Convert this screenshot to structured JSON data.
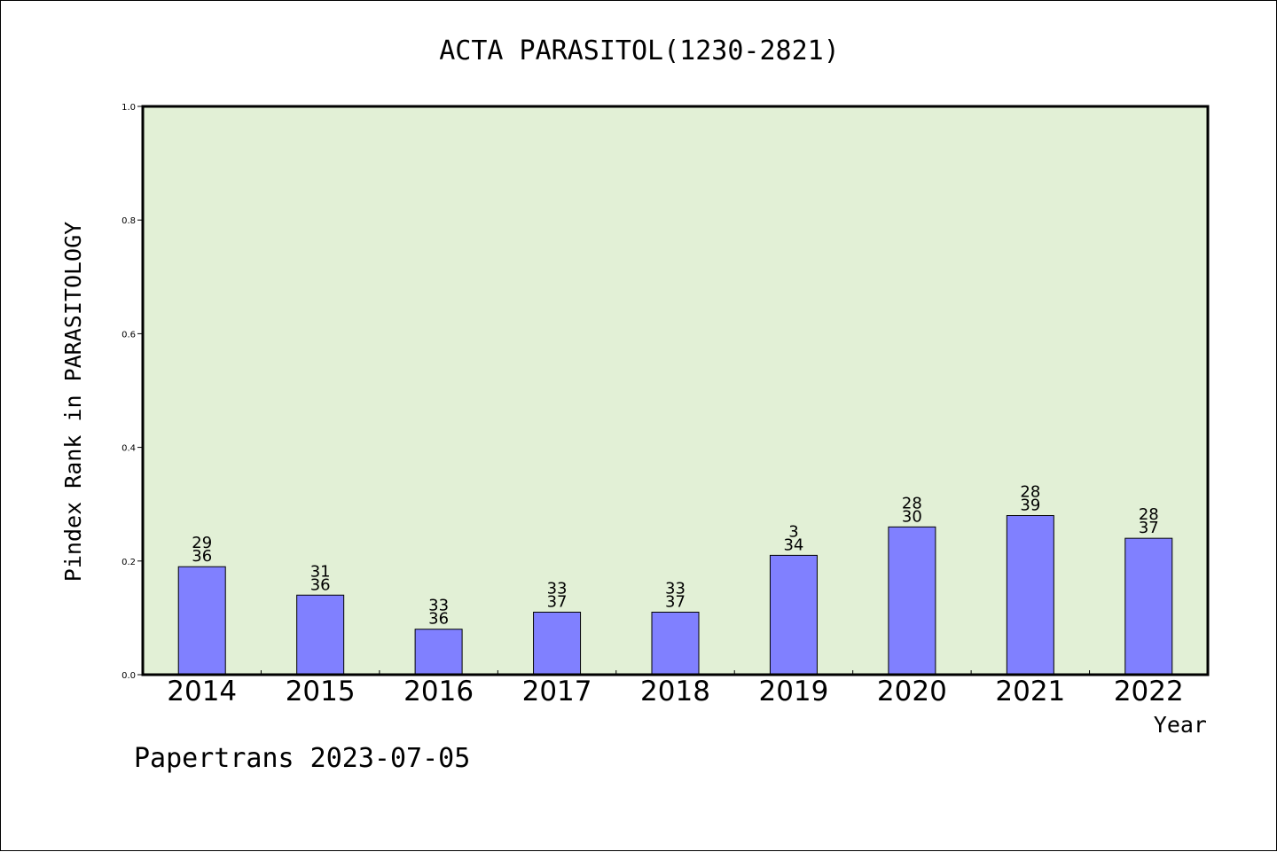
{
  "footer": "Papertrans 2023-07-05",
  "colors": {
    "plot_bg": "#e2f0d6",
    "bar": "#8080ff",
    "axis": "#000000"
  },
  "chart_data": {
    "type": "bar",
    "title": "ACTA PARASITOL(1230-2821)",
    "xlabel": "Year",
    "ylabel": "Pindex Rank in PARASITOLOGY",
    "ylim": [
      0,
      1.0
    ],
    "yticks": [
      "0.0",
      "0.2",
      "0.4",
      "0.6",
      "0.8",
      "1.0"
    ],
    "grid": false,
    "categories": [
      "2014",
      "2015",
      "2016",
      "2017",
      "2018",
      "2019",
      "2020",
      "2021",
      "2022"
    ],
    "values": [
      0.19,
      0.14,
      0.08,
      0.11,
      0.11,
      0.21,
      0.26,
      0.28,
      0.24
    ],
    "labels_top": [
      "29",
      "31",
      "33",
      "33",
      "33",
      "3",
      "28",
      "28",
      "28"
    ],
    "labels_bottom": [
      "36",
      "36",
      "36",
      "37",
      "37",
      "34",
      "30",
      "39",
      "37"
    ]
  }
}
